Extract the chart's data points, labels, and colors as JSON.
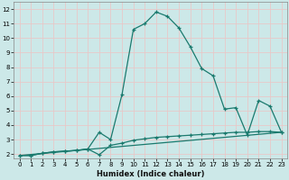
{
  "title": "",
  "xlabel": "Humidex (Indice chaleur)",
  "bg_color": "#cce8e8",
  "grid_color": "#e8c8c8",
  "line_color": "#1a7a6e",
  "xlim": [
    -0.5,
    23.5
  ],
  "ylim": [
    1.7,
    12.5
  ],
  "xticks": [
    0,
    1,
    2,
    3,
    4,
    5,
    6,
    7,
    8,
    9,
    10,
    11,
    12,
    13,
    14,
    15,
    16,
    17,
    18,
    19,
    20,
    21,
    22,
    23
  ],
  "yticks": [
    2,
    3,
    4,
    5,
    6,
    7,
    8,
    9,
    10,
    11,
    12
  ],
  "line1_x": [
    0,
    1,
    2,
    3,
    4,
    5,
    6,
    7,
    8,
    9,
    10,
    11,
    12,
    13,
    14,
    15,
    16,
    17,
    18,
    19,
    20,
    21,
    22,
    23
  ],
  "line1_y": [
    1.9,
    1.9,
    2.05,
    2.15,
    2.2,
    2.25,
    2.35,
    3.5,
    3.0,
    6.1,
    10.6,
    11.0,
    11.8,
    11.5,
    10.7,
    9.4,
    7.9,
    7.4,
    5.1,
    5.2,
    3.3,
    5.7,
    5.3,
    3.5
  ],
  "line2_x": [
    0,
    1,
    2,
    3,
    4,
    5,
    6,
    7,
    8,
    9,
    10,
    11,
    12,
    13,
    14,
    15,
    16,
    17,
    18,
    19,
    20,
    21,
    22,
    23
  ],
  "line2_y": [
    1.9,
    1.9,
    2.05,
    2.15,
    2.2,
    2.25,
    2.35,
    1.95,
    2.6,
    2.75,
    2.95,
    3.05,
    3.15,
    3.2,
    3.25,
    3.3,
    3.35,
    3.4,
    3.45,
    3.5,
    3.5,
    3.55,
    3.55,
    3.5
  ],
  "line3_x": [
    0,
    23
  ],
  "line3_y": [
    1.9,
    3.5
  ]
}
